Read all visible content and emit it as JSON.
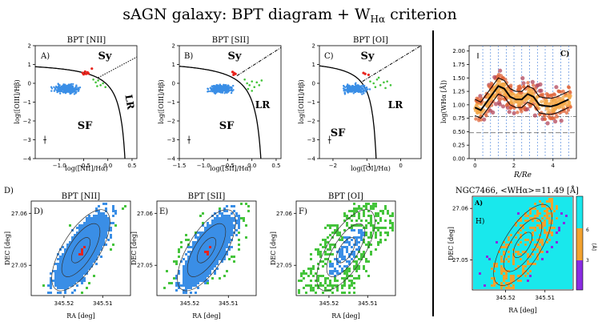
{
  "figure": {
    "title_main": "sAGN galaxy: BPT diagram + W",
    "title_sub": "Hα",
    "title_tail": " criterion"
  },
  "colors": {
    "sf": "#3a8ee6",
    "sy": "#e8231c",
    "lr": "#45c43c",
    "profile_dot": "#b3475b",
    "cyan": "#19e8ec",
    "orange": "#f2a230",
    "purple": "#8a2be2"
  },
  "chart_data": [
    {
      "type": "scatter",
      "id": "bpt-nii",
      "panel": "A)",
      "title": "BPT [NII]",
      "xlabel": "log([NII]/Hα)",
      "ylabel": "log([OIII]/Hβ)",
      "xlim": [
        -1.5,
        0.6
      ],
      "ylim": [
        -4,
        2
      ],
      "xticks": [
        -1.0,
        -0.5,
        0.0,
        0.5
      ],
      "xtick_labels": [
        "−1.0",
        "−0.5",
        "0.0",
        "0.5"
      ],
      "yticks": [
        -4,
        -3,
        -2,
        -1,
        0,
        1,
        2
      ],
      "ytick_labels": [
        "−4",
        "−3",
        "−2",
        "−1",
        "0",
        "1",
        "2"
      ],
      "region_labels": {
        "sy": "Sy",
        "sf": "SF",
        "lr": "LR"
      },
      "sf_cloud": {
        "x_center": -0.85,
        "x_spread": 0.25,
        "y_center": -0.3,
        "y_spread": 0.22
      },
      "sy_points": [
        [
          -0.52,
          0.55
        ],
        [
          -0.47,
          0.62
        ],
        [
          -0.45,
          0.5
        ],
        [
          -0.42,
          0.58
        ],
        [
          -0.5,
          0.48
        ],
        [
          -0.4,
          0.52
        ],
        [
          -0.33,
          0.78
        ]
      ],
      "lr_points": [
        [
          -0.3,
          0.2
        ],
        [
          -0.25,
          0.05
        ],
        [
          -0.2,
          0.15
        ],
        [
          -0.15,
          -0.1
        ],
        [
          -0.1,
          0.0
        ],
        [
          -0.05,
          -0.2
        ],
        [
          -0.22,
          -0.15
        ]
      ],
      "errorbar": [
        -1.3,
        -3.0
      ]
    },
    {
      "type": "scatter",
      "id": "bpt-sii",
      "panel": "B)",
      "title": "BPT [SII]",
      "xlabel": "log([SII]/Hα)",
      "ylabel": "log([OIII]/Hβ)",
      "xlim": [
        -1.5,
        0.6
      ],
      "ylim": [
        -4,
        2
      ],
      "xticks": [
        -1.5,
        -1.0,
        -0.5,
        0.0,
        0.5
      ],
      "xtick_labels": [
        "−1.5",
        "−1.0",
        "−0.5",
        "0.0",
        "0.5"
      ],
      "yticks": [
        -4,
        -3,
        -2,
        -1,
        0,
        1,
        2
      ],
      "ytick_labels": [
        "−4",
        "−3",
        "−2",
        "−1",
        "0",
        "1",
        "2"
      ],
      "region_labels": {
        "sy": "Sy",
        "sf": "SF",
        "lr": "LR"
      },
      "sf_cloud": {
        "x_center": -0.65,
        "x_spread": 0.22,
        "y_center": -0.3,
        "y_spread": 0.22
      },
      "sy_points": [
        [
          -0.4,
          0.6
        ],
        [
          -0.37,
          0.55
        ],
        [
          -0.34,
          0.5
        ],
        [
          -0.38,
          0.45
        ]
      ],
      "lr_points": [
        [
          -0.15,
          0.2
        ],
        [
          -0.1,
          0.0
        ],
        [
          -0.05,
          -0.1
        ],
        [
          0.0,
          0.1
        ],
        [
          0.05,
          -0.2
        ],
        [
          0.1,
          0.05
        ],
        [
          -0.08,
          -0.3
        ],
        [
          0.15,
          -0.1
        ],
        [
          0.2,
          0.15
        ],
        [
          0.0,
          -0.4
        ]
      ],
      "errorbar": [
        -1.3,
        -3.0
      ]
    },
    {
      "type": "scatter",
      "id": "bpt-oi",
      "panel": "C)",
      "title": "BPT [OI]",
      "xlabel": "log([OI]/Hα)",
      "ylabel": "log([OIII]/Hβ)",
      "xlim": [
        -2.4,
        0.6
      ],
      "ylim": [
        -4,
        2
      ],
      "xticks": [
        -2,
        -1,
        0
      ],
      "xtick_labels": [
        "−2",
        "−1",
        "0"
      ],
      "yticks": [
        -4,
        -3,
        -2,
        -1,
        0,
        1,
        2
      ],
      "ytick_labels": [
        "−4",
        "−3",
        "−2",
        "−1",
        "0",
        "1",
        "2"
      ],
      "region_labels": {
        "sy": "Sy",
        "sf": "SF",
        "lr": "LR"
      },
      "sf_cloud": {
        "x_center": -1.35,
        "x_spread": 0.35,
        "y_center": -0.3,
        "y_spread": 0.22
      },
      "sy_points": [
        [
          -1.1,
          0.55
        ],
        [
          -1.05,
          0.5
        ],
        [
          -0.95,
          0.45
        ]
      ],
      "lr_points": [
        [
          -0.9,
          0.1
        ],
        [
          -0.8,
          0.0
        ],
        [
          -0.7,
          0.2
        ],
        [
          -0.6,
          -0.1
        ],
        [
          -0.5,
          0.05
        ],
        [
          -0.45,
          -0.25
        ],
        [
          -0.75,
          -0.2
        ],
        [
          -0.4,
          0.1
        ],
        [
          -0.3,
          -0.1
        ],
        [
          -0.65,
          0.3
        ]
      ],
      "errorbar": [
        -2.1,
        -3.0
      ]
    },
    {
      "type": "scatter",
      "id": "wha-profile",
      "panel": "C)",
      "xlabel": "R/Re",
      "ylabel": "log(WHα [Å])",
      "xlim": [
        -0.3,
        5.2
      ],
      "ylim": [
        0.0,
        2.1
      ],
      "xticks": [
        0,
        2,
        4
      ],
      "xtick_labels": [
        "0",
        "2",
        "4"
      ],
      "yticks": [
        0.0,
        0.25,
        0.5,
        0.75,
        1.0,
        1.25,
        1.5,
        1.75,
        2.0
      ],
      "ytick_labels": [
        "0.00",
        "0.25",
        "0.50",
        "0.75",
        "1.00",
        "1.25",
        "1.50",
        "1.75",
        "2.00"
      ],
      "hlines": [
        0.78,
        0.48
      ],
      "vlines": [
        0.4,
        0.8,
        1.2,
        1.6,
        2.0,
        2.4,
        2.8,
        3.2,
        3.6,
        4.0,
        4.4,
        4.8
      ],
      "median_profile": {
        "x": [
          0.0,
          0.3,
          0.6,
          0.9,
          1.2,
          1.5,
          1.8,
          2.1,
          2.4,
          2.7,
          3.0,
          3.3,
          3.6,
          3.9,
          4.2,
          4.5,
          4.8
        ],
        "y": [
          0.95,
          0.9,
          1.05,
          1.2,
          1.35,
          1.3,
          1.15,
          1.1,
          1.1,
          1.2,
          1.15,
          1.0,
          0.98,
          0.97,
          1.0,
          1.05,
          1.1
        ]
      },
      "band_halfwidth": 0.15
    },
    {
      "type": "map",
      "id": "map-nii",
      "panel": "D)",
      "title": "BPT [NII]",
      "xlabel": "RA [deg]",
      "ylabel": "DEC [deg]",
      "xtick_labels": [
        "345.52",
        "345.51"
      ],
      "ytick_labels": [
        "27.06",
        "27.05"
      ]
    },
    {
      "type": "map",
      "id": "map-sii",
      "panel": "E)",
      "title": "BPT [SII]",
      "xlabel": "RA [deg]",
      "ylabel": "DEC [deg]",
      "xtick_labels": [
        "345.52",
        "345.51"
      ],
      "ytick_labels": [
        "27.06",
        "27.05"
      ]
    },
    {
      "type": "map",
      "id": "map-oi",
      "panel": "F)",
      "title": "BPT [OI]",
      "xlabel": "RA [deg]",
      "ylabel": "DEC [deg]",
      "xtick_labels": [
        "345.52",
        "345.51"
      ],
      "ytick_labels": [
        "27.06",
        "27.05"
      ]
    },
    {
      "type": "map",
      "id": "map-wha",
      "panel": "A)",
      "panel2": "H)",
      "title": "NGC7466, <WHα>=11.49 [Å]",
      "xlabel": "RA [deg]",
      "ylabel": "DEC [deg]",
      "xtick_labels": [
        "345.52",
        "345.51"
      ],
      "ytick_labels": [
        "27.06",
        "27.05"
      ],
      "colorbar_ticks": [
        "6",
        "3"
      ],
      "colorbar_unit": "[Å]"
    }
  ],
  "labels": {
    "d_outer": "D)"
  }
}
